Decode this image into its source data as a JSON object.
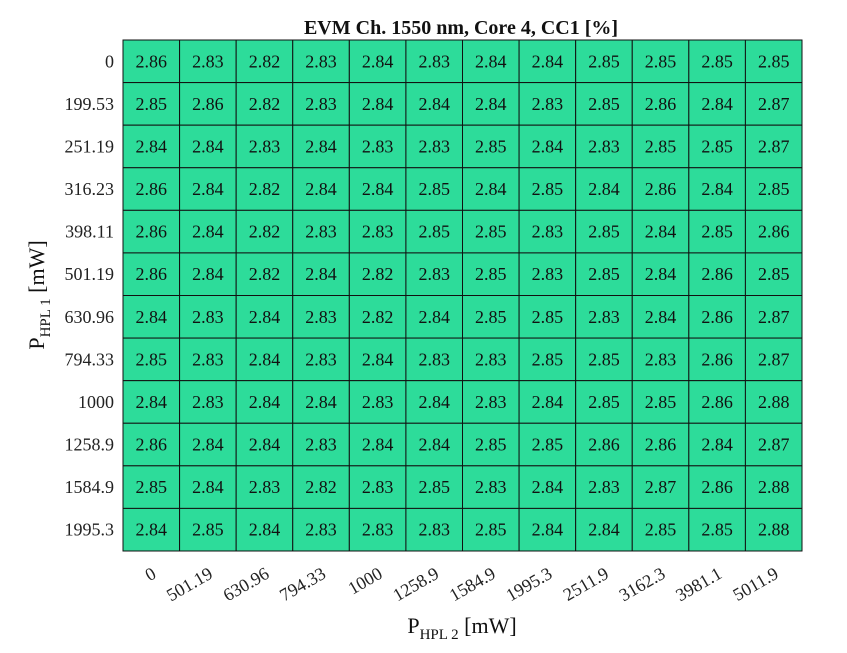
{
  "chart_data": {
    "type": "heatmap",
    "title": "EVM Ch. 1550 nm, Core 4, CC1 [%]",
    "xlabel": {
      "main": "P",
      "sub": "HPL 2",
      "unit": " [mW]"
    },
    "ylabel": {
      "main": "P",
      "sub": "HPL 1",
      "unit": " [mW]"
    },
    "x_categories": [
      "0",
      "501.19",
      "630.96",
      "794.33",
      "1000",
      "1258.9",
      "1584.9",
      "1995.3",
      "2511.9",
      "3162.3",
      "3981.1",
      "5011.9"
    ],
    "y_categories": [
      "0",
      "199.53",
      "251.19",
      "316.23",
      "398.11",
      "501.19",
      "630.96",
      "794.33",
      "1000",
      "1258.9",
      "1584.9",
      "1995.3"
    ],
    "values": [
      [
        "2.86",
        "2.83",
        "2.82",
        "2.83",
        "2.84",
        "2.83",
        "2.84",
        "2.84",
        "2.85",
        "2.85",
        "2.85",
        "2.85"
      ],
      [
        "2.85",
        "2.86",
        "2.82",
        "2.83",
        "2.84",
        "2.84",
        "2.84",
        "2.83",
        "2.85",
        "2.86",
        "2.84",
        "2.87"
      ],
      [
        "2.84",
        "2.84",
        "2.83",
        "2.84",
        "2.83",
        "2.83",
        "2.85",
        "2.84",
        "2.83",
        "2.85",
        "2.85",
        "2.87"
      ],
      [
        "2.86",
        "2.84",
        "2.82",
        "2.84",
        "2.84",
        "2.85",
        "2.84",
        "2.85",
        "2.84",
        "2.86",
        "2.84",
        "2.85"
      ],
      [
        "2.86",
        "2.84",
        "2.82",
        "2.83",
        "2.83",
        "2.85",
        "2.85",
        "2.83",
        "2.85",
        "2.84",
        "2.85",
        "2.86"
      ],
      [
        "2.86",
        "2.84",
        "2.82",
        "2.84",
        "2.82",
        "2.83",
        "2.85",
        "2.83",
        "2.85",
        "2.84",
        "2.86",
        "2.85"
      ],
      [
        "2.84",
        "2.83",
        "2.84",
        "2.83",
        "2.82",
        "2.84",
        "2.85",
        "2.85",
        "2.83",
        "2.84",
        "2.86",
        "2.87"
      ],
      [
        "2.85",
        "2.83",
        "2.84",
        "2.83",
        "2.84",
        "2.83",
        "2.83",
        "2.85",
        "2.85",
        "2.83",
        "2.86",
        "2.87"
      ],
      [
        "2.84",
        "2.83",
        "2.84",
        "2.84",
        "2.83",
        "2.84",
        "2.83",
        "2.84",
        "2.85",
        "2.85",
        "2.86",
        "2.88"
      ],
      [
        "2.86",
        "2.84",
        "2.84",
        "2.83",
        "2.84",
        "2.84",
        "2.85",
        "2.85",
        "2.86",
        "2.86",
        "2.84",
        "2.87"
      ],
      [
        "2.85",
        "2.84",
        "2.83",
        "2.82",
        "2.83",
        "2.85",
        "2.83",
        "2.84",
        "2.83",
        "2.87",
        "2.86",
        "2.88"
      ],
      [
        "2.84",
        "2.85",
        "2.84",
        "2.83",
        "2.83",
        "2.83",
        "2.85",
        "2.84",
        "2.84",
        "2.85",
        "2.85",
        "2.88"
      ]
    ],
    "cell_color": "#2ddc9a",
    "grid_color": "#111111",
    "grid": true
  }
}
